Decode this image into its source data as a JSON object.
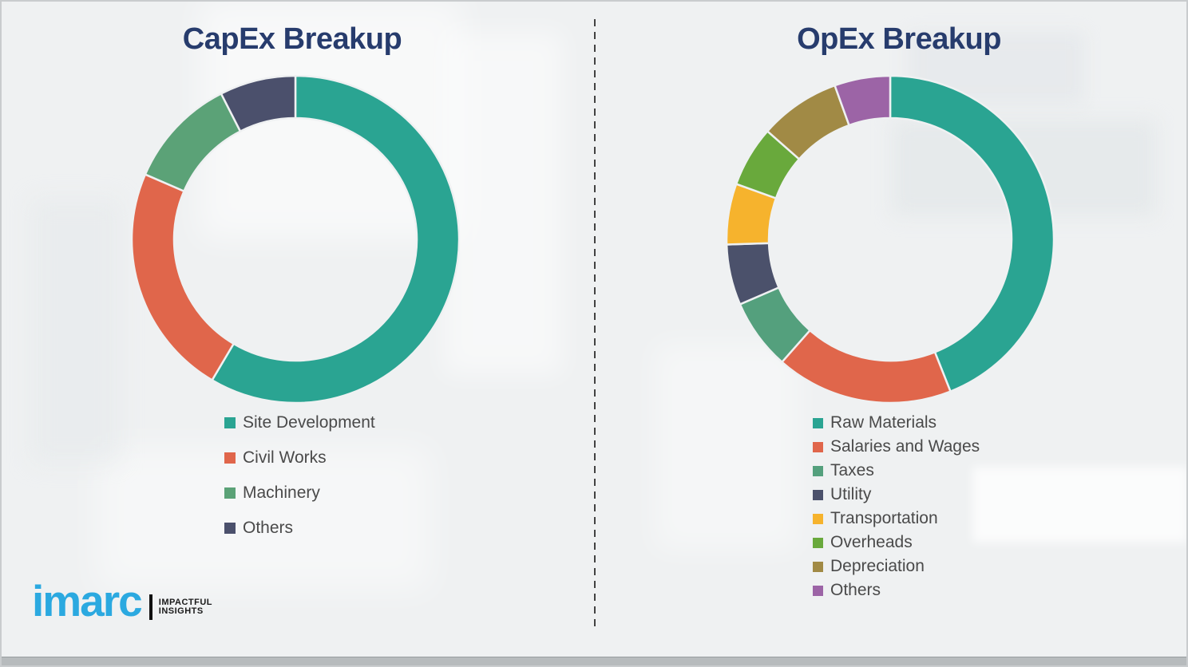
{
  "page": {
    "background": "#EFF1F2",
    "title_color": "#273C6D",
    "legend_text_color": "#4A4A4A",
    "divider_color": "#424242",
    "bottom_bar_color": "#B7BBBD"
  },
  "chart_data": [
    {
      "type": "pie",
      "subtype": "donut",
      "title": "CapEx Breakup",
      "categories": [
        "Site Development",
        "Civil Works",
        "Machinery",
        "Others"
      ],
      "values": [
        58.5,
        23,
        11,
        7.5
      ],
      "units": "percent-estimated",
      "colors": [
        "#2AA492",
        "#E0664B",
        "#5BA277",
        "#4B506C"
      ],
      "start_angle_deg": 0,
      "direction": "clockwise",
      "legend_position": "below-left",
      "data_labels": false
    },
    {
      "type": "pie",
      "subtype": "donut",
      "title": "OpEx Breakup",
      "categories": [
        "Raw Materials",
        "Salaries and Wages",
        "Taxes",
        "Utility",
        "Transportation",
        "Overheads",
        "Depreciation",
        "Others"
      ],
      "values": [
        44,
        17.5,
        7,
        6,
        6,
        6,
        8,
        5.5
      ],
      "units": "percent-estimated",
      "colors": [
        "#2AA492",
        "#E0664B",
        "#54A07D",
        "#4B516B",
        "#F6B32D",
        "#69A93C",
        "#A18A45",
        "#9C64A6"
      ],
      "start_angle_deg": 0,
      "direction": "clockwise",
      "legend_position": "below-left",
      "data_labels": false
    }
  ],
  "logo": {
    "brand": "imarc",
    "brand_color": "#2BA9E0",
    "tagline_line1": "IMPACTFUL",
    "tagline_line2": "INSIGHTS",
    "tagline_color": "#1A1A1A"
  }
}
